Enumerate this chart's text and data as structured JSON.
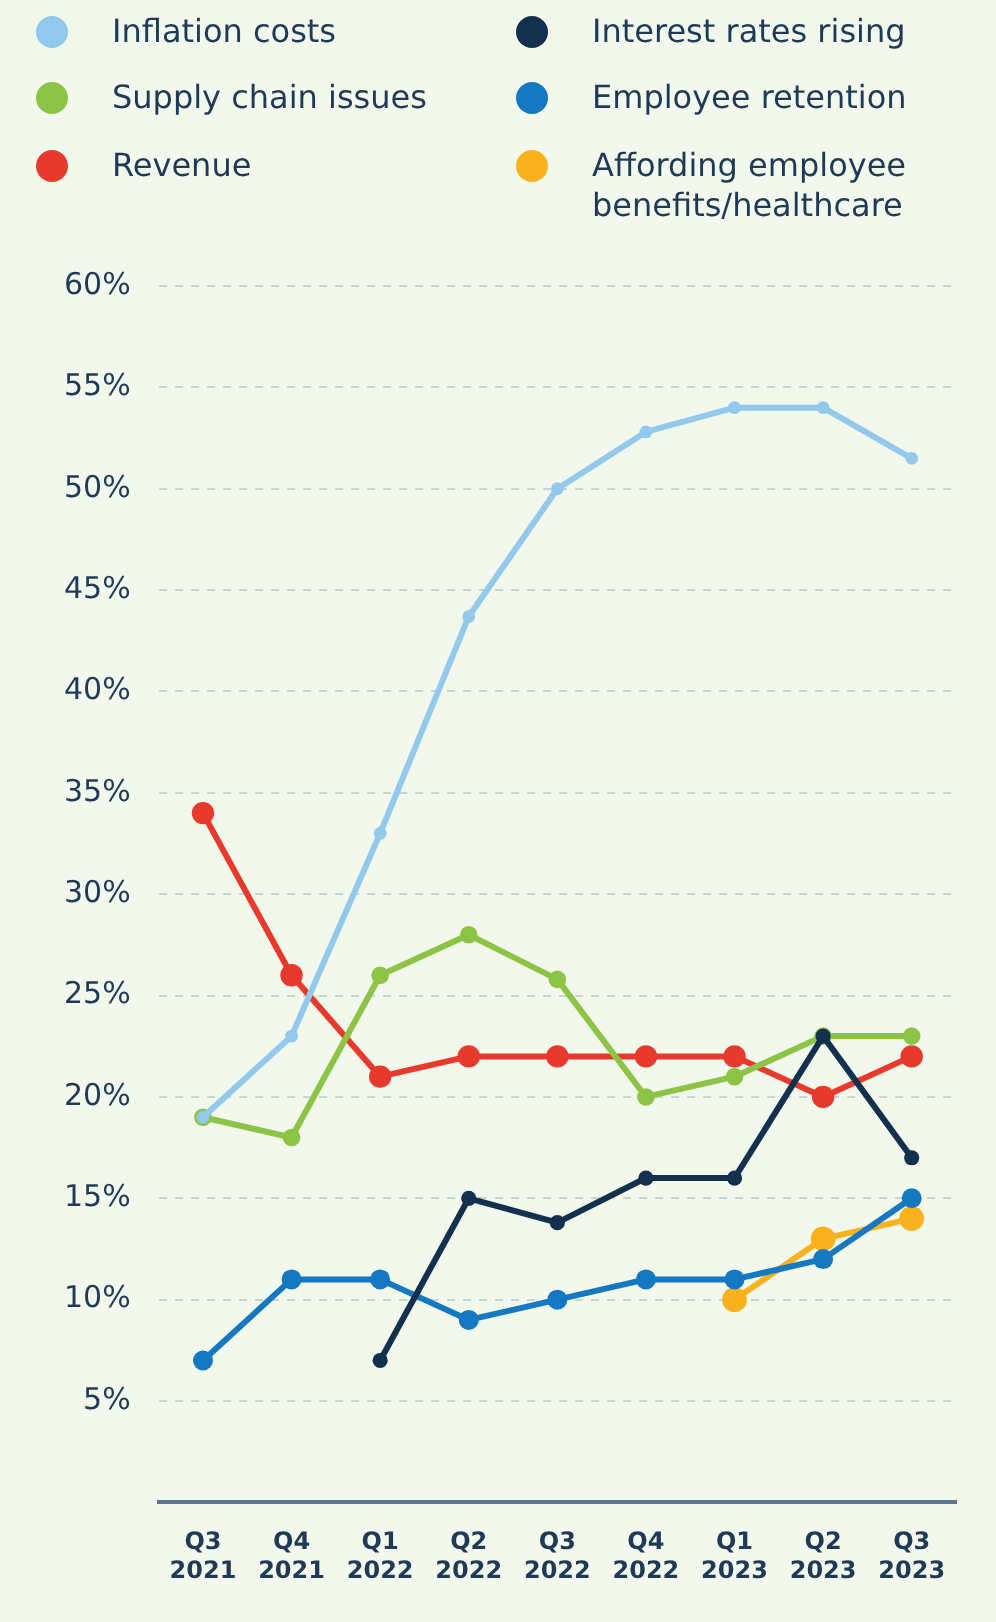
{
  "chart_data": {
    "type": "line",
    "categories": [
      "Q3 2021",
      "Q4 2021",
      "Q1 2022",
      "Q2 2022",
      "Q3 2022",
      "Q4 2022",
      "Q1 2023",
      "Q2 2023",
      "Q3 2023"
    ],
    "series": [
      {
        "name": "Inflation costs",
        "color": "#93c9ec",
        "values": [
          19,
          23,
          33,
          43.7,
          50,
          52.8,
          54,
          54,
          51.5
        ]
      },
      {
        "name": "Interest rates rising",
        "color": "#13314f",
        "values": [
          null,
          null,
          7,
          15,
          13.8,
          16,
          16,
          23,
          17
        ]
      },
      {
        "name": "Supply chain issues",
        "color": "#8dc446",
        "values": [
          19,
          18,
          26,
          28,
          25.8,
          20,
          21,
          23,
          23
        ]
      },
      {
        "name": "Employee retention",
        "color": "#1479c2",
        "values": [
          7,
          11,
          11,
          9,
          10,
          11,
          11,
          12,
          15
        ]
      },
      {
        "name": "Revenue",
        "color": "#e8392d",
        "values": [
          34,
          26,
          21,
          22,
          22,
          22,
          22,
          20,
          22
        ]
      },
      {
        "name": "Affording employee benefits/healthcare",
        "color": "#f9b21d",
        "values": [
          null,
          null,
          null,
          null,
          null,
          null,
          10,
          13,
          14
        ]
      }
    ],
    "ylim": [
      0,
      60
    ],
    "yticks": [
      {
        "value": 5,
        "label": "5%"
      },
      {
        "value": 10,
        "label": "10%"
      },
      {
        "value": 15,
        "label": "15%"
      },
      {
        "value": 20,
        "label": "20%"
      },
      {
        "value": 25,
        "label": "25%"
      },
      {
        "value": 30,
        "label": "30%"
      },
      {
        "value": 35,
        "label": "35%"
      },
      {
        "value": 40,
        "label": "40%"
      },
      {
        "value": 45,
        "label": "45%"
      },
      {
        "value": 50,
        "label": "50%"
      },
      {
        "value": 55,
        "label": "55%"
      },
      {
        "value": 60,
        "label": "60%"
      }
    ],
    "grid": "y",
    "legend": "top",
    "marker": "circle",
    "line_style": "solid"
  }
}
